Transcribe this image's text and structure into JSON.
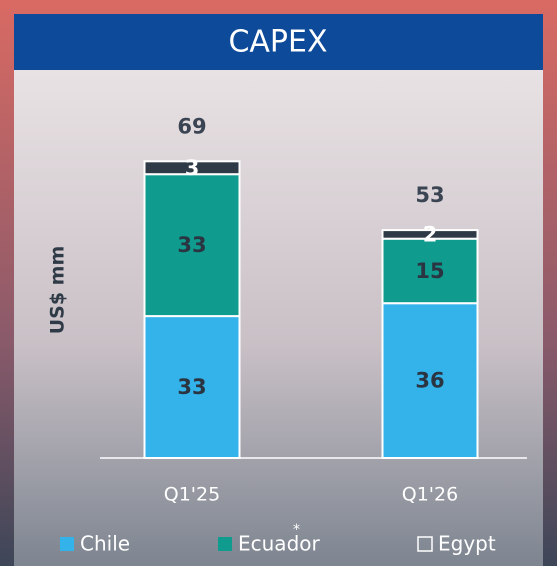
{
  "chart_data": {
    "type": "stacked-bar",
    "title": "CAPEX",
    "ylabel": "US$ mm",
    "categories": [
      "Q1'25",
      "Q1'26"
    ],
    "series": [
      {
        "name": "Chile",
        "color": "#33b3ea",
        "values": [
          33,
          36
        ]
      },
      {
        "name": "Ecuador",
        "color": "#0f9b8e",
        "values": [
          33,
          15
        ]
      },
      {
        "name": "Egypt",
        "color": "#2f3a47",
        "values": [
          3,
          2
        ]
      }
    ],
    "totals": [
      69,
      53
    ],
    "legend_note": "*"
  }
}
